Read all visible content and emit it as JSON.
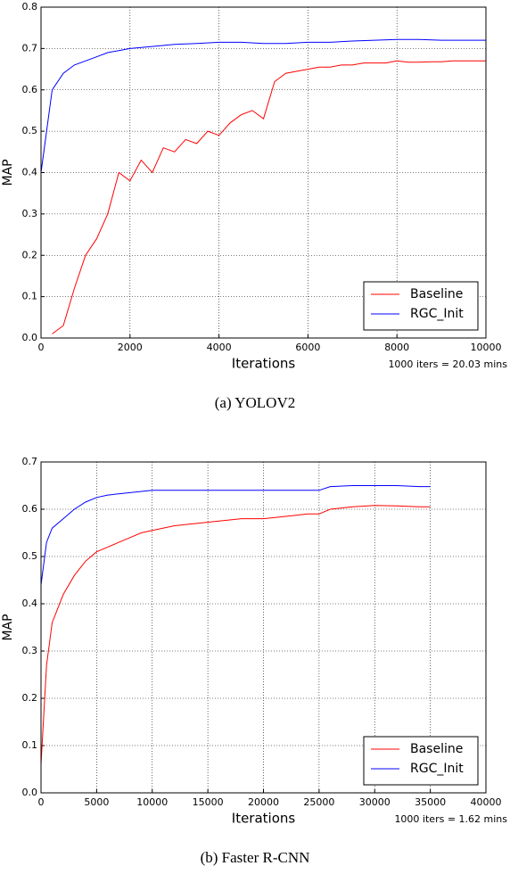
{
  "chart_data": [
    {
      "type": "line",
      "caption": "(a) YOLOV2",
      "xlabel": "Iterations",
      "ylabel": "MAP",
      "annotation": "1000 iters = 20.03 mins",
      "xlim": [
        0,
        10000
      ],
      "xticks": [
        0,
        2000,
        4000,
        6000,
        8000,
        10000
      ],
      "ylim": [
        0,
        0.8
      ],
      "yticks": [
        {
          "value": 0,
          "label": "0.0"
        },
        0.1,
        0.2,
        0.3,
        0.4,
        0.5,
        0.6,
        0.7,
        0.8
      ],
      "grid": true,
      "legend": "lower right",
      "series": [
        {
          "name": "Baseline",
          "color": "#ff0000",
          "x": [
            250,
            500,
            750,
            1000,
            1250,
            1500,
            1750,
            2000,
            2250,
            2500,
            2750,
            3000,
            3250,
            3500,
            3750,
            4000,
            4250,
            4500,
            4750,
            5000,
            5250,
            5500,
            5750,
            6000,
            6250,
            6500,
            6750,
            7000,
            7250,
            7500,
            7750,
            8000,
            8250,
            8500,
            8750,
            9000,
            9250,
            9500,
            9750,
            10000
          ],
          "values": [
            0.01,
            0.03,
            0.12,
            0.2,
            0.24,
            0.3,
            0.4,
            0.38,
            0.43,
            0.4,
            0.46,
            0.45,
            0.48,
            0.47,
            0.5,
            0.49,
            0.52,
            0.54,
            0.55,
            0.53,
            0.62,
            0.64,
            0.645,
            0.65,
            0.655,
            0.655,
            0.66,
            0.66,
            0.665,
            0.665,
            0.665,
            0.67,
            0.667,
            0.667,
            0.668,
            0.668,
            0.67,
            0.67,
            0.67,
            0.67
          ]
        },
        {
          "name": "RGC_Init",
          "color": "#0000ff",
          "x": [
            0,
            250,
            500,
            750,
            1000,
            1250,
            1500,
            1750,
            2000,
            2500,
            3000,
            3500,
            4000,
            4500,
            5000,
            5500,
            6000,
            6500,
            7000,
            7500,
            8000,
            8500,
            9000,
            9500,
            10000
          ],
          "values": [
            0.4,
            0.6,
            0.64,
            0.66,
            0.67,
            0.68,
            0.69,
            0.695,
            0.7,
            0.705,
            0.71,
            0.712,
            0.715,
            0.715,
            0.712,
            0.712,
            0.715,
            0.715,
            0.718,
            0.72,
            0.722,
            0.722,
            0.72,
            0.72,
            0.72
          ]
        }
      ]
    },
    {
      "type": "line",
      "caption": "(b) Faster R-CNN",
      "xlabel": "Iterations",
      "ylabel": "MAP",
      "annotation": "1000 iters = 1.62 mins",
      "xlim": [
        0,
        40000
      ],
      "xticks": [
        0,
        5000,
        10000,
        15000,
        20000,
        25000,
        30000,
        35000,
        40000
      ],
      "ylim": [
        0,
        0.7
      ],
      "yticks": [
        {
          "value": 0,
          "label": "0.0"
        },
        0.1,
        0.2,
        0.3,
        0.4,
        0.5,
        0.6,
        0.7
      ],
      "grid": true,
      "legend": "lower right",
      "series": [
        {
          "name": "Baseline",
          "color": "#ff0000",
          "x": [
            0,
            500,
            1000,
            2000,
            3000,
            4000,
            5000,
            6000,
            7000,
            8000,
            9000,
            10000,
            12000,
            14000,
            16000,
            18000,
            20000,
            22000,
            24000,
            25000,
            26000,
            28000,
            30000,
            32000,
            34000,
            35000
          ],
          "values": [
            0.06,
            0.27,
            0.36,
            0.42,
            0.46,
            0.49,
            0.51,
            0.52,
            0.53,
            0.54,
            0.55,
            0.555,
            0.565,
            0.57,
            0.575,
            0.58,
            0.58,
            0.585,
            0.59,
            0.59,
            0.6,
            0.605,
            0.608,
            0.607,
            0.605,
            0.605
          ]
        },
        {
          "name": "RGC_Init",
          "color": "#0000ff",
          "x": [
            0,
            500,
            1000,
            2000,
            3000,
            4000,
            5000,
            6000,
            8000,
            10000,
            12000,
            14000,
            16000,
            18000,
            20000,
            22000,
            24000,
            25000,
            26000,
            28000,
            30000,
            32000,
            34000,
            35000
          ],
          "values": [
            0.44,
            0.53,
            0.56,
            0.58,
            0.6,
            0.615,
            0.625,
            0.63,
            0.635,
            0.64,
            0.64,
            0.64,
            0.64,
            0.64,
            0.64,
            0.64,
            0.64,
            0.64,
            0.648,
            0.65,
            0.65,
            0.65,
            0.648,
            0.648
          ]
        }
      ]
    }
  ]
}
